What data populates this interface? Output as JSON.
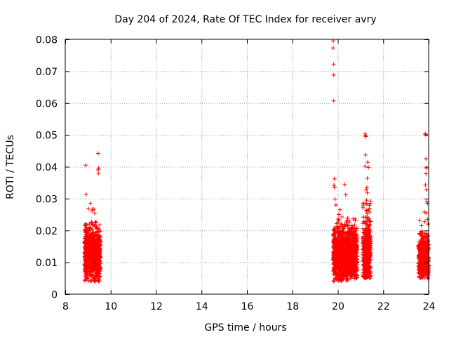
{
  "chart_data": {
    "type": "scatter",
    "title": "Day 204 of 2024, Rate Of TEC Index for receiver avry",
    "xlabel": "GPS time / hours",
    "ylabel": "ROTI / TECUs",
    "xlim": [
      8,
      24
    ],
    "ylim": [
      0,
      0.08
    ],
    "xticks": [
      8,
      10,
      12,
      14,
      16,
      18,
      20,
      22,
      24
    ],
    "xtick_labels": [
      "8",
      "10",
      "12",
      "14",
      "16",
      "18",
      "20",
      "22",
      "24"
    ],
    "yticks": [
      0,
      0.01,
      0.02,
      0.03,
      0.04,
      0.05,
      0.06,
      0.07,
      0.08
    ],
    "ytick_labels": [
      "0",
      "0.01",
      "0.02",
      "0.03",
      "0.04",
      "0.05",
      "0.06",
      "0.07",
      "0.08"
    ],
    "grid": true,
    "marker": "+",
    "colors": {
      "points": "#ff0000",
      "grid": "#a0a0a0",
      "axes": "#000000"
    },
    "series": [
      {
        "name": "ROTI",
        "clusters": [
          {
            "x_range": [
              8.85,
              9.55
            ],
            "count": 900,
            "y_mean": 0.0125,
            "y_sd": 0.004,
            "y_min": 0.004,
            "y_max": 0.029
          },
          {
            "x_range": [
              19.8,
              20.85
            ],
            "count": 1300,
            "y_mean": 0.0125,
            "y_sd": 0.0042,
            "y_min": 0.004,
            "y_max": 0.027
          },
          {
            "x_range": [
              21.1,
              21.45
            ],
            "count": 420,
            "y_mean": 0.0135,
            "y_sd": 0.006,
            "y_min": 0.005,
            "y_max": 0.03
          },
          {
            "x_range": [
              23.55,
              24.0
            ],
            "count": 360,
            "y_mean": 0.0115,
            "y_sd": 0.004,
            "y_min": 0.005,
            "y_max": 0.028
          }
        ],
        "points": [
          [
            8.9,
            0.0405
          ],
          [
            8.92,
            0.0313
          ],
          [
            9.02,
            0.0268
          ],
          [
            9.1,
            0.0285
          ],
          [
            9.18,
            0.0262
          ],
          [
            9.3,
            0.0254
          ],
          [
            9.45,
            0.0442
          ],
          [
            9.45,
            0.039
          ],
          [
            9.47,
            0.0396
          ],
          [
            9.46,
            0.038
          ],
          [
            9.5,
            0.0042
          ],
          [
            9.4,
            0.021
          ],
          [
            19.8,
            0.0795
          ],
          [
            19.8,
            0.0773
          ],
          [
            19.82,
            0.0722
          ],
          [
            19.82,
            0.0688
          ],
          [
            19.82,
            0.0607
          ],
          [
            19.85,
            0.0362
          ],
          [
            19.83,
            0.0342
          ],
          [
            19.86,
            0.0335
          ],
          [
            19.88,
            0.0298
          ],
          [
            19.92,
            0.028
          ],
          [
            20.1,
            0.0265
          ],
          [
            20.3,
            0.0344
          ],
          [
            20.35,
            0.0312
          ],
          [
            20.5,
            0.0225
          ],
          [
            20.1,
            0.0045
          ],
          [
            21.2,
            0.0503
          ],
          [
            21.22,
            0.0497
          ],
          [
            21.24,
            0.0495
          ],
          [
            21.22,
            0.0437
          ],
          [
            21.2,
            0.0402
          ],
          [
            21.32,
            0.0414
          ],
          [
            21.35,
            0.0398
          ],
          [
            21.3,
            0.0364
          ],
          [
            21.28,
            0.0335
          ],
          [
            21.25,
            0.0327
          ],
          [
            21.3,
            0.0318
          ],
          [
            21.27,
            0.0295
          ],
          [
            21.22,
            0.0285
          ],
          [
            21.35,
            0.0265
          ],
          [
            21.4,
            0.0258
          ],
          [
            23.85,
            0.0503
          ],
          [
            23.87,
            0.0501
          ],
          [
            23.88,
            0.0425
          ],
          [
            23.9,
            0.0396
          ],
          [
            23.88,
            0.0378
          ],
          [
            23.86,
            0.0343
          ],
          [
            23.9,
            0.0328
          ],
          [
            23.92,
            0.029
          ],
          [
            23.95,
            0.0285
          ],
          [
            23.9,
            0.0255
          ],
          [
            23.95,
            0.0235
          ],
          [
            23.65,
            0.019
          ],
          [
            23.97,
            0.005
          ],
          [
            23.98,
            0.0068
          ]
        ]
      }
    ]
  }
}
